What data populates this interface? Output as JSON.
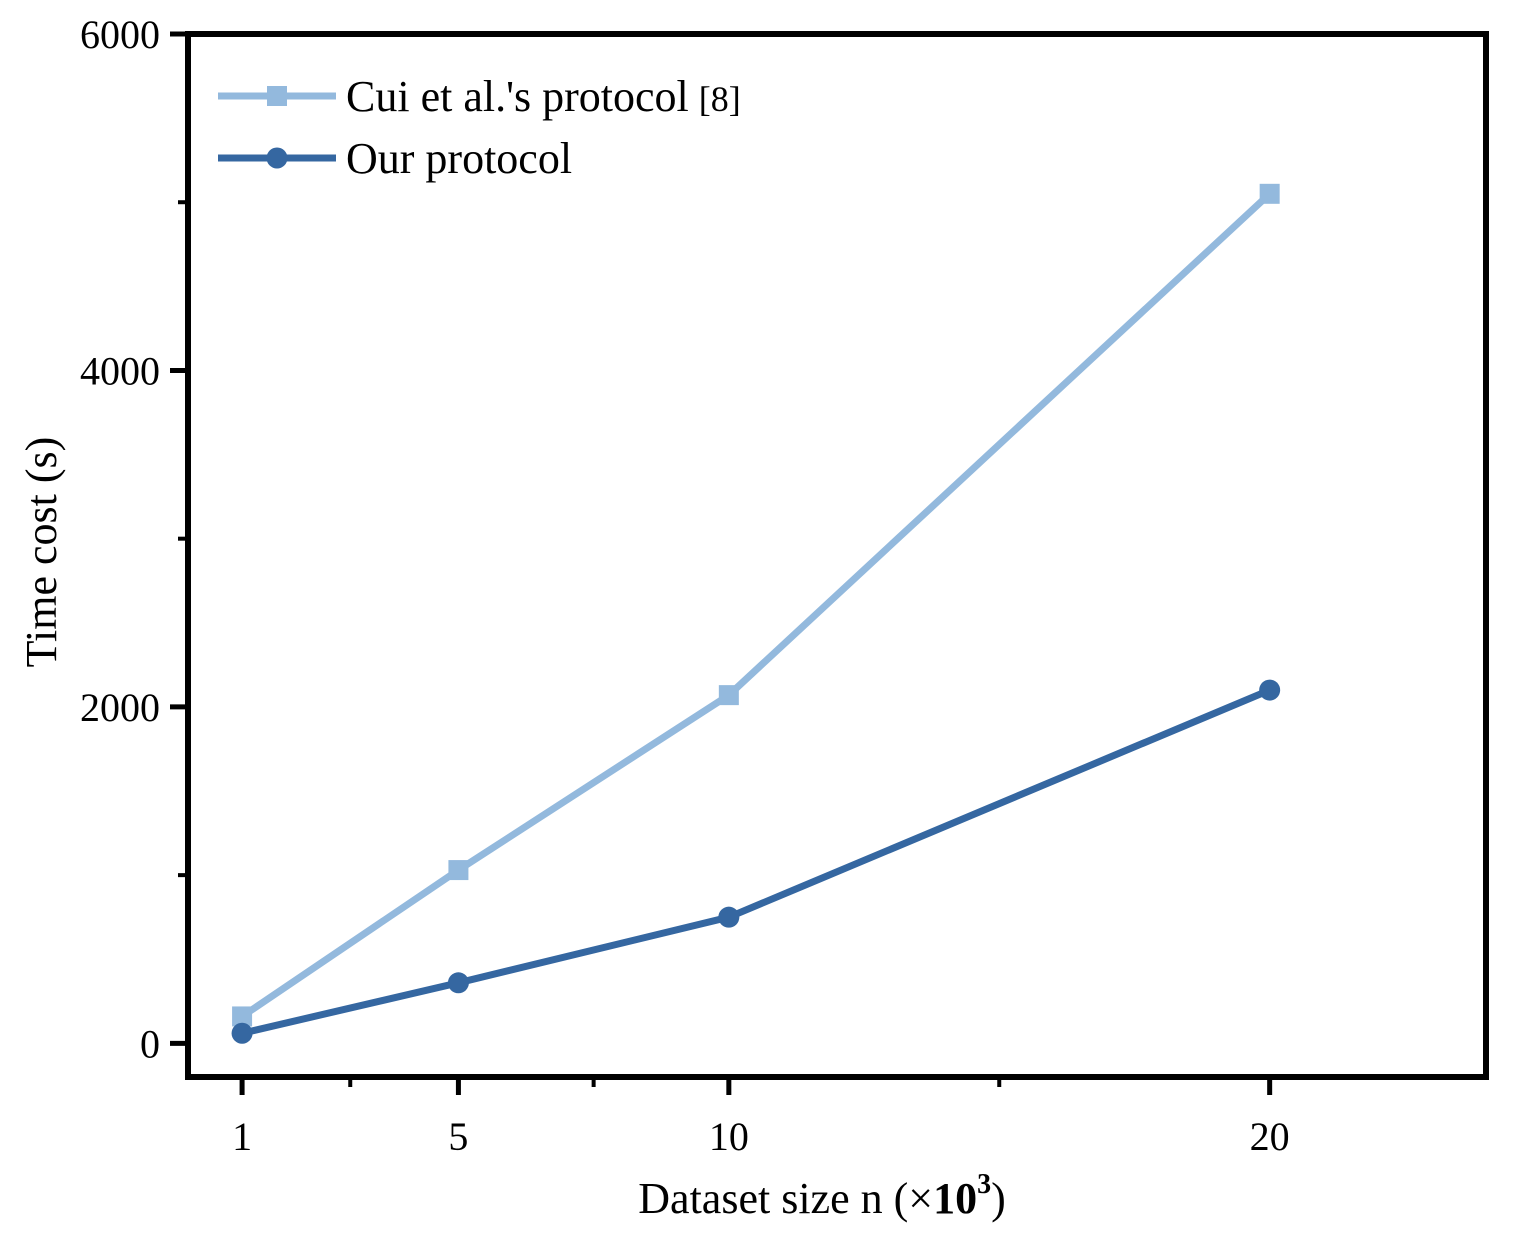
{
  "chart_data": {
    "type": "line",
    "title": "",
    "xlabel": "Dataset size n (×",
    "xlabel_exp_base": "10",
    "xlabel_exp_power": "3",
    "xlabel_close": ")",
    "ylabel": "Time cost (s)",
    "x": [
      1,
      5,
      10,
      20
    ],
    "xlim": [
      0,
      24
    ],
    "ylim": [
      -200,
      6000
    ],
    "x_ticks": [
      1,
      5,
      10,
      20
    ],
    "x_tick_labels": [
      "1",
      "5",
      "10",
      "20"
    ],
    "x_minor_ticks": [
      3,
      7.5,
      15
    ],
    "y_ticks": [
      0,
      2000,
      4000,
      6000
    ],
    "y_tick_labels": [
      "0",
      "2000",
      "4000",
      "6000"
    ],
    "y_minor_ticks": [
      1000,
      3000,
      5000
    ],
    "grid": false,
    "legend_position": "top-left",
    "series": [
      {
        "name": "Cui et al.'s protocol",
        "ref": "[8]",
        "marker": "square",
        "color": "#93B9DD",
        "values": [
          160,
          1030,
          2070,
          5050
        ]
      },
      {
        "name": "Our protocol",
        "ref": "",
        "marker": "circle",
        "color": "#3567A1",
        "values": [
          60,
          360,
          750,
          2100
        ]
      }
    ]
  }
}
